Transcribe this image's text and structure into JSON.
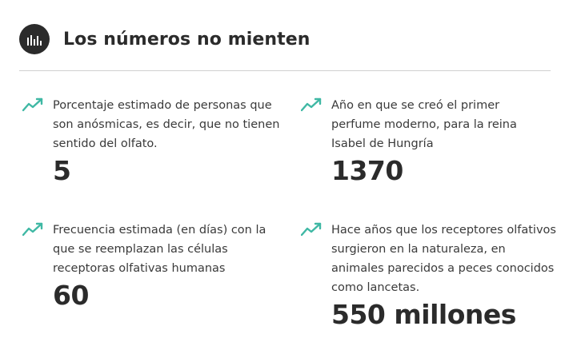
{
  "header": {
    "title": "Los números no mienten",
    "icon": "bar-chart-icon"
  },
  "stats": [
    {
      "icon": "trend-up-icon",
      "description": "Porcentaje estimado de personas que son anósmicas, es decir, que no tienen sentido del olfato.",
      "value": "5"
    },
    {
      "icon": "trend-up-icon",
      "description": "Año en que se creó el primer perfume moderno, para la reina Isabel de Hungría",
      "value": "1370"
    },
    {
      "icon": "trend-up-icon",
      "description": "Frecuencia estimada (en días) con la que se reemplazan las células receptoras olfativas humanas",
      "value": "60"
    },
    {
      "icon": "trend-up-icon",
      "description": "Hace años que los receptores olfativos surgieron en la naturaleza, en animales parecidos a peces conocidos como lancetas.",
      "value": "550 millones"
    }
  ],
  "colors": {
    "accent": "#3fb8a4",
    "text": "#2b2b2b",
    "icon_bg": "#2b2b2b"
  }
}
